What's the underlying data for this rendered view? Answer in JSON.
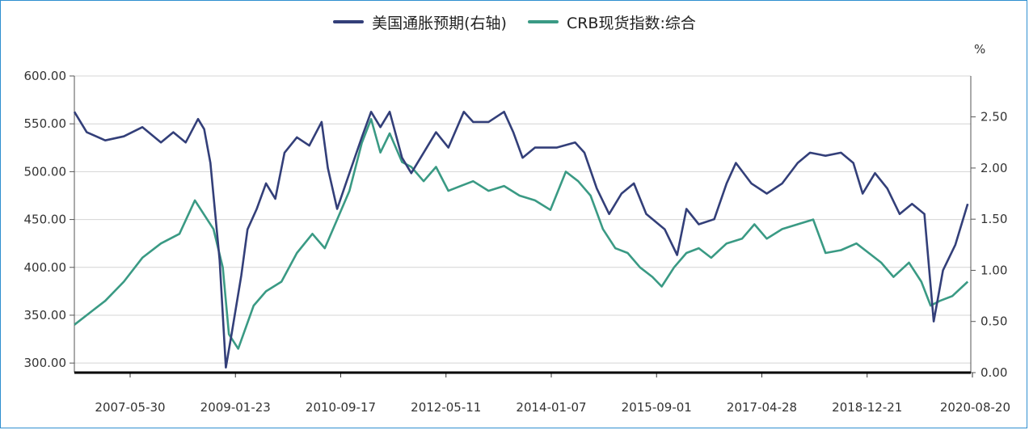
{
  "chart_data": {
    "type": "line",
    "legend_position": "top-center",
    "grid": true,
    "x_tick_labels": [
      "2007-05-30",
      "2009-01-23",
      "2010-09-17",
      "2012-05-11",
      "2014-01-07",
      "2015-09-01",
      "2017-04-28",
      "2018-12-21",
      "2020-08-20"
    ],
    "y_left": {
      "ticks": [
        "300.00",
        "350.00",
        "400.00",
        "450.00",
        "500.00",
        "550.00",
        "600.00"
      ],
      "range": [
        290,
        600
      ]
    },
    "y_right": {
      "unit": "%",
      "ticks": [
        "0.00",
        "0.50",
        "1.00",
        "1.50",
        "2.00",
        "2.50"
      ],
      "range": [
        0,
        2.9
      ]
    },
    "series": [
      {
        "name": "美国通胀预期(右轴)",
        "axis": "right",
        "color": "#333f79",
        "points": [
          [
            2006.5,
            2.55
          ],
          [
            2006.7,
            2.35
          ],
          [
            2007.0,
            2.27
          ],
          [
            2007.3,
            2.31
          ],
          [
            2007.6,
            2.4
          ],
          [
            2007.9,
            2.25
          ],
          [
            2008.1,
            2.35
          ],
          [
            2008.3,
            2.25
          ],
          [
            2008.5,
            2.48
          ],
          [
            2008.6,
            2.38
          ],
          [
            2008.7,
            2.05
          ],
          [
            2008.85,
            1.1
          ],
          [
            2008.95,
            0.05
          ],
          [
            2009.05,
            0.4
          ],
          [
            2009.2,
            0.95
          ],
          [
            2009.3,
            1.4
          ],
          [
            2009.45,
            1.6
          ],
          [
            2009.6,
            1.85
          ],
          [
            2009.75,
            1.7
          ],
          [
            2009.9,
            2.15
          ],
          [
            2010.1,
            2.3
          ],
          [
            2010.3,
            2.22
          ],
          [
            2010.5,
            2.45
          ],
          [
            2010.6,
            2.0
          ],
          [
            2010.75,
            1.6
          ],
          [
            2010.95,
            1.95
          ],
          [
            2011.15,
            2.3
          ],
          [
            2011.3,
            2.55
          ],
          [
            2011.45,
            2.4
          ],
          [
            2011.6,
            2.55
          ],
          [
            2011.8,
            2.1
          ],
          [
            2011.95,
            1.95
          ],
          [
            2012.15,
            2.15
          ],
          [
            2012.35,
            2.35
          ],
          [
            2012.55,
            2.2
          ],
          [
            2012.8,
            2.55
          ],
          [
            2012.95,
            2.45
          ],
          [
            2013.2,
            2.45
          ],
          [
            2013.45,
            2.55
          ],
          [
            2013.6,
            2.35
          ],
          [
            2013.75,
            2.1
          ],
          [
            2013.95,
            2.2
          ],
          [
            2014.3,
            2.2
          ],
          [
            2014.6,
            2.25
          ],
          [
            2014.75,
            2.15
          ],
          [
            2014.95,
            1.8
          ],
          [
            2015.15,
            1.55
          ],
          [
            2015.35,
            1.75
          ],
          [
            2015.55,
            1.85
          ],
          [
            2015.75,
            1.55
          ],
          [
            2016.05,
            1.4
          ],
          [
            2016.25,
            1.15
          ],
          [
            2016.4,
            1.6
          ],
          [
            2016.6,
            1.45
          ],
          [
            2016.85,
            1.5
          ],
          [
            2017.05,
            1.85
          ],
          [
            2017.2,
            2.05
          ],
          [
            2017.45,
            1.85
          ],
          [
            2017.7,
            1.75
          ],
          [
            2017.95,
            1.85
          ],
          [
            2018.2,
            2.05
          ],
          [
            2018.4,
            2.15
          ],
          [
            2018.65,
            2.12
          ],
          [
            2018.9,
            2.15
          ],
          [
            2019.1,
            2.05
          ],
          [
            2019.25,
            1.75
          ],
          [
            2019.45,
            1.95
          ],
          [
            2019.65,
            1.8
          ],
          [
            2019.85,
            1.55
          ],
          [
            2020.05,
            1.65
          ],
          [
            2020.25,
            1.55
          ],
          [
            2020.4,
            0.5
          ],
          [
            2020.55,
            1.0
          ],
          [
            2020.75,
            1.25
          ],
          [
            2020.95,
            1.65
          ]
        ]
      },
      {
        "name": "CRB现货指数:综合",
        "axis": "left",
        "color": "#3a9a84",
        "points": [
          [
            2006.5,
            340
          ],
          [
            2006.8,
            355
          ],
          [
            2007.0,
            365
          ],
          [
            2007.3,
            385
          ],
          [
            2007.6,
            410
          ],
          [
            2007.9,
            425
          ],
          [
            2008.2,
            435
          ],
          [
            2008.45,
            470
          ],
          [
            2008.6,
            455
          ],
          [
            2008.75,
            440
          ],
          [
            2008.9,
            400
          ],
          [
            2009.0,
            330
          ],
          [
            2009.15,
            315
          ],
          [
            2009.4,
            360
          ],
          [
            2009.6,
            375
          ],
          [
            2009.85,
            385
          ],
          [
            2010.1,
            415
          ],
          [
            2010.35,
            435
          ],
          [
            2010.55,
            420
          ],
          [
            2010.75,
            450
          ],
          [
            2010.95,
            480
          ],
          [
            2011.15,
            530
          ],
          [
            2011.3,
            555
          ],
          [
            2011.45,
            520
          ],
          [
            2011.6,
            540
          ],
          [
            2011.8,
            510
          ],
          [
            2011.95,
            505
          ],
          [
            2012.15,
            490
          ],
          [
            2012.35,
            505
          ],
          [
            2012.55,
            480
          ],
          [
            2012.75,
            485
          ],
          [
            2012.95,
            490
          ],
          [
            2013.2,
            480
          ],
          [
            2013.45,
            485
          ],
          [
            2013.7,
            475
          ],
          [
            2013.95,
            470
          ],
          [
            2014.2,
            460
          ],
          [
            2014.45,
            500
          ],
          [
            2014.65,
            490
          ],
          [
            2014.85,
            475
          ],
          [
            2015.05,
            440
          ],
          [
            2015.25,
            420
          ],
          [
            2015.45,
            415
          ],
          [
            2015.65,
            400
          ],
          [
            2015.85,
            390
          ],
          [
            2016.0,
            380
          ],
          [
            2016.2,
            400
          ],
          [
            2016.4,
            415
          ],
          [
            2016.6,
            420
          ],
          [
            2016.8,
            410
          ],
          [
            2017.05,
            425
          ],
          [
            2017.3,
            430
          ],
          [
            2017.5,
            445
          ],
          [
            2017.7,
            430
          ],
          [
            2017.95,
            440
          ],
          [
            2018.2,
            445
          ],
          [
            2018.45,
            450
          ],
          [
            2018.65,
            415
          ],
          [
            2018.9,
            418
          ],
          [
            2019.15,
            425
          ],
          [
            2019.35,
            415
          ],
          [
            2019.55,
            405
          ],
          [
            2019.75,
            390
          ],
          [
            2020.0,
            405
          ],
          [
            2020.2,
            385
          ],
          [
            2020.35,
            360
          ],
          [
            2020.5,
            365
          ],
          [
            2020.7,
            370
          ],
          [
            2020.95,
            385
          ]
        ]
      }
    ]
  }
}
